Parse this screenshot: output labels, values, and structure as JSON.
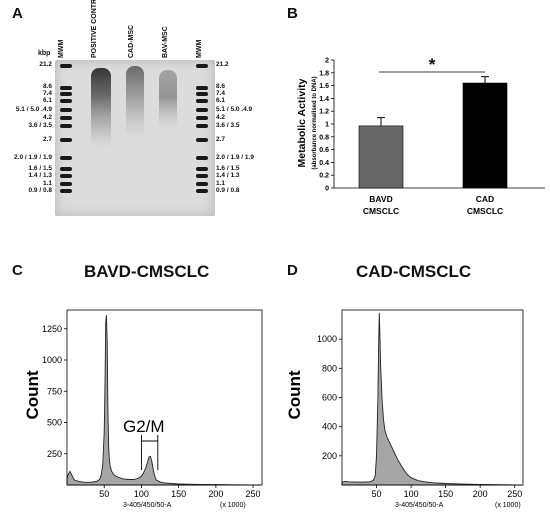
{
  "panels": {
    "a": "A",
    "b": "B",
    "c": "C",
    "d": "D"
  },
  "gel": {
    "unit_label": "kbp",
    "lanes": [
      "MWM",
      "POSITIVE CONTROL",
      "CAD-MSC",
      "BAV-MSC",
      "MWM"
    ],
    "ladder_left": [
      "21.2",
      "8.6",
      "7.4",
      "6.1",
      "5.1 / 5.0 .4.9",
      "4.2",
      "3.6 / 3.5",
      "2.7",
      "2.0 / 1.9 / 1.9",
      "1.6 / 1.5",
      "1.4 / 1.3",
      "1.1",
      "0.9 / 0.8"
    ],
    "ladder_right": [
      "21.2",
      "8.6",
      "7.4",
      "6.1",
      "5.1 / 5.0 .4.9",
      "4.2",
      "3.6 / 3.5",
      "2.7",
      "2.0 / 1.9 / 1.9",
      "1.6 / 1.5",
      "1.4 / 1.3",
      "1.1",
      "0.9 / 0.8"
    ]
  },
  "chart_data": [
    {
      "type": "bar",
      "panel": "B",
      "categories": [
        "BAVD CMSCLC",
        "CAD CMSCLC"
      ],
      "category_lines": [
        [
          "BAVD",
          "CMSCLC"
        ],
        [
          "CAD",
          "CMSCLC"
        ]
      ],
      "values": [
        0.97,
        1.64
      ],
      "errors": [
        0.13,
        0.1
      ],
      "colors": [
        "#666666",
        "#000000"
      ],
      "ylabel": "Metabolic Activity",
      "ylabel_sub": "(absorbance normalised to DNA)",
      "ylim": [
        0,
        2
      ],
      "yticks": [
        "0",
        "0.2",
        "0.4",
        "0.6",
        "0.8",
        "1",
        "1.2",
        "1.4",
        "1.6",
        "1.8",
        "2"
      ],
      "significance": "*",
      "grid": false
    },
    {
      "type": "area",
      "panel": "C",
      "title": "BAVD-CMSCLC",
      "xlabel": "3-405/450/50-A",
      "xunit": "(x 1000)",
      "ylabel": "Count",
      "xlim": [
        0,
        262
      ],
      "ylim": [
        0,
        1400
      ],
      "xticks": [
        "50",
        "100",
        "150",
        "200",
        "250"
      ],
      "yticks": [
        "250",
        "500",
        "750",
        "1000",
        "1250"
      ],
      "annotation": "G2/M",
      "gate": [
        100,
        122
      ],
      "x": [
        0,
        2,
        4,
        6,
        8,
        10,
        15,
        20,
        25,
        30,
        35,
        40,
        44,
        46,
        48,
        50,
        51,
        52,
        53,
        54,
        55,
        56,
        57,
        58,
        60,
        62,
        65,
        70,
        75,
        80,
        85,
        90,
        95,
        100,
        103,
        106,
        108,
        110,
        112,
        114,
        116,
        118,
        120,
        125,
        130,
        140,
        150,
        175,
        200,
        225,
        250,
        260
      ],
      "y": [
        55,
        90,
        110,
        85,
        60,
        40,
        30,
        25,
        22,
        22,
        24,
        30,
        45,
        80,
        160,
        420,
        800,
        1300,
        1360,
        1150,
        600,
        300,
        200,
        150,
        110,
        90,
        72,
        60,
        50,
        46,
        44,
        45,
        52,
        70,
        100,
        140,
        180,
        225,
        230,
        190,
        120,
        70,
        40,
        25,
        18,
        12,
        8,
        5,
        3,
        2,
        1,
        0
      ]
    },
    {
      "type": "area",
      "panel": "D",
      "title": "CAD-CMSCLC",
      "xlabel": "3-405/450/50-A",
      "xunit": "(x 1000)",
      "ylabel": "Count",
      "xlim": [
        0,
        262
      ],
      "ylim": [
        0,
        1200
      ],
      "xticks": [
        "50",
        "100",
        "150",
        "200",
        "250"
      ],
      "yticks": [
        "200",
        "400",
        "600",
        "800",
        "1000"
      ],
      "x": [
        0,
        5,
        10,
        20,
        30,
        40,
        45,
        48,
        50,
        52,
        53,
        54,
        55,
        56,
        57,
        58,
        60,
        62,
        65,
        70,
        75,
        80,
        85,
        90,
        95,
        100,
        105,
        110,
        120,
        130,
        150,
        175,
        200,
        225,
        250,
        260
      ],
      "y": [
        20,
        25,
        22,
        20,
        20,
        22,
        30,
        60,
        200,
        600,
        950,
        1180,
        1000,
        800,
        700,
        580,
        450,
        380,
        330,
        280,
        230,
        180,
        140,
        100,
        70,
        50,
        40,
        30,
        22,
        16,
        10,
        6,
        4,
        2,
        1,
        0
      ]
    }
  ]
}
